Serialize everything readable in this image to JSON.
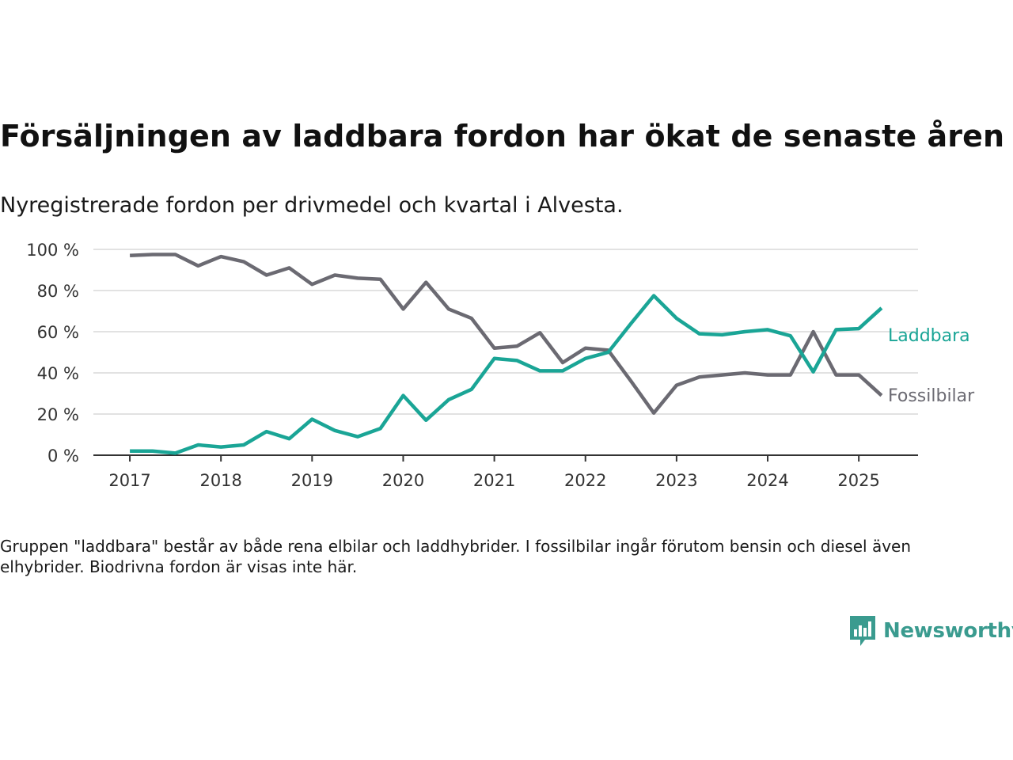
{
  "title": "Försäljningen av laddbara fordon har ökat de senaste åren",
  "subtitle": "Nyregistrerade fordon per drivmedel och kvartal i Alvesta.",
  "footnote": "Gruppen \"laddbara\" består av både rena elbilar och laddhybrider. I fossilbilar ingår förutom bensin och diesel även elhybrider. Biodrivna fordon är visas inte här.",
  "brand": {
    "name": "Newsworthy",
    "icon": "newsworthy-logo-icon",
    "color": "#3a9b8f"
  },
  "chart_data": {
    "type": "line",
    "x_start": 2017.0,
    "x_step": 0.25,
    "xlim": [
      2016.6,
      2025.65
    ],
    "ylim": [
      0,
      100
    ],
    "y_ticks": [
      0,
      20,
      40,
      60,
      80,
      100
    ],
    "y_tick_labels": [
      "0 %",
      "20 %",
      "40 %",
      "60 %",
      "80 %",
      "100 %"
    ],
    "x_ticks": [
      2017,
      2018,
      2019,
      2020,
      2021,
      2022,
      2023,
      2024,
      2025
    ],
    "x_tick_labels": [
      "2017",
      "2018",
      "2019",
      "2020",
      "2021",
      "2022",
      "2023",
      "2024",
      "2025"
    ],
    "grid": true,
    "legend": "direct-labels-right",
    "series": [
      {
        "name": "Laddbara",
        "color": "#1aa596",
        "values": [
          2,
          2,
          1,
          5,
          4,
          5,
          11.5,
          8,
          17.5,
          12,
          9,
          13,
          29,
          17,
          27,
          32,
          47,
          46,
          41,
          41,
          47,
          50,
          64,
          77.5,
          66.5,
          59,
          58.5,
          60,
          61,
          58,
          40.5,
          61,
          61.5,
          71.5
        ]
      },
      {
        "name": "Fossilbilar",
        "color": "#6b6a72",
        "values": [
          97,
          97.5,
          97.5,
          92,
          96.5,
          94,
          87.5,
          91,
          83,
          87.5,
          86,
          85.5,
          71,
          84,
          71,
          66.5,
          52,
          53,
          59.5,
          45,
          52,
          51,
          36,
          20.5,
          34,
          38,
          39,
          40,
          39,
          39,
          60,
          39,
          39,
          29
        ]
      }
    ]
  }
}
